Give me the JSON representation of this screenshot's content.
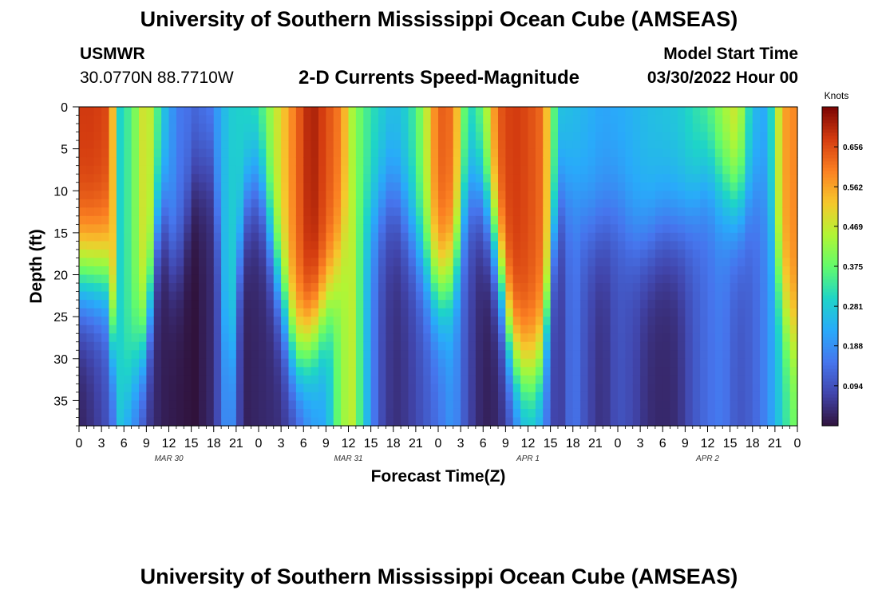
{
  "header": {
    "title": "University of Southern Mississippi Ocean Cube (AMSEAS)",
    "station": "USMWR",
    "coordinates": "30.0770N  88.7710W",
    "subtitle": "2-D Currents Speed-Magnitude",
    "model_start_label": "Model Start Time",
    "model_start_value": "03/30/2022 Hour 00"
  },
  "footer": {
    "title": "University of Southern Mississippi Ocean Cube (AMSEAS)"
  },
  "chart_data": {
    "type": "heatmap",
    "title": "2-D Currents Speed-Magnitude",
    "xlabel": "Forecast Time(Z)",
    "ylabel": "Depth (ft)",
    "x_ticks": [
      "0",
      "3",
      "6",
      "9",
      "12",
      "15",
      "18",
      "21",
      "0",
      "3",
      "6",
      "9",
      "12",
      "15",
      "18",
      "21",
      "0",
      "3",
      "6",
      "9",
      "12",
      "15",
      "18",
      "21",
      "0",
      "3",
      "6",
      "9",
      "12",
      "15",
      "18",
      "21",
      "0"
    ],
    "x_range_hours": [
      0,
      96
    ],
    "day_labels": [
      {
        "label": "MAR 30",
        "hour": 12
      },
      {
        "label": "MAR 31",
        "hour": 36
      },
      {
        "label": "APR 1",
        "hour": 60
      },
      {
        "label": "APR 2",
        "hour": 84
      }
    ],
    "y_ticks": [
      "0",
      "5",
      "10",
      "15",
      "20",
      "25",
      "30",
      "35"
    ],
    "y_range": [
      0,
      38
    ],
    "y_inverted": true,
    "colorbar": {
      "units": "Knots",
      "min": 0.0,
      "max": 0.75,
      "tick_values": [
        0.656,
        0.562,
        0.469,
        0.375,
        0.281,
        0.188,
        0.094
      ],
      "tick_labels": [
        "0.656",
        "0.562",
        "0.469",
        "0.375",
        "0.281",
        "0.188",
        "0.094"
      ]
    },
    "speed_profile_knots": {
      "hours": [
        0,
        2,
        4,
        5.5,
        7,
        9,
        11,
        13,
        15.5,
        18,
        20,
        22,
        24,
        26.5,
        29,
        31,
        33,
        35,
        36.5,
        38,
        40,
        42,
        44,
        46,
        48,
        50,
        52,
        54,
        56,
        58,
        60,
        62,
        64,
        66,
        68,
        70,
        72,
        74,
        76,
        78,
        80,
        82,
        84,
        86,
        88,
        90,
        92,
        94,
        96
      ],
      "surface": [
        0.68,
        0.68,
        0.66,
        0.3,
        0.36,
        0.52,
        0.3,
        0.16,
        0.14,
        0.18,
        0.28,
        0.3,
        0.34,
        0.48,
        0.62,
        0.72,
        0.66,
        0.6,
        0.44,
        0.36,
        0.3,
        0.26,
        0.3,
        0.42,
        0.64,
        0.62,
        0.3,
        0.4,
        0.64,
        0.68,
        0.66,
        0.62,
        0.28,
        0.26,
        0.24,
        0.22,
        0.23,
        0.24,
        0.26,
        0.27,
        0.28,
        0.32,
        0.36,
        0.44,
        0.5,
        0.26,
        0.22,
        0.56,
        0.6
      ],
      "bottom": [
        0.02,
        0.05,
        0.1,
        0.2,
        0.18,
        0.06,
        0.02,
        0.01,
        0.0,
        0.04,
        0.22,
        0.02,
        0.03,
        0.04,
        0.08,
        0.18,
        0.22,
        0.42,
        0.46,
        0.3,
        0.1,
        0.04,
        0.06,
        0.1,
        0.14,
        0.2,
        0.08,
        0.02,
        0.03,
        0.1,
        0.24,
        0.18,
        0.04,
        0.16,
        0.08,
        0.04,
        0.1,
        0.08,
        0.04,
        0.03,
        0.04,
        0.1,
        0.14,
        0.16,
        0.1,
        0.12,
        0.18,
        0.3,
        0.4
      ],
      "transition_depth_ft": [
        20,
        20,
        20,
        40,
        32,
        28,
        10,
        20,
        8,
        6,
        34,
        12,
        8,
        20,
        30,
        28,
        24,
        18,
        10,
        14,
        12,
        10,
        14,
        18,
        22,
        20,
        10,
        10,
        18,
        30,
        32,
        30,
        10,
        10,
        14,
        14,
        12,
        16,
        16,
        14,
        14,
        12,
        8,
        10,
        12,
        10,
        10,
        24,
        28
      ]
    }
  }
}
